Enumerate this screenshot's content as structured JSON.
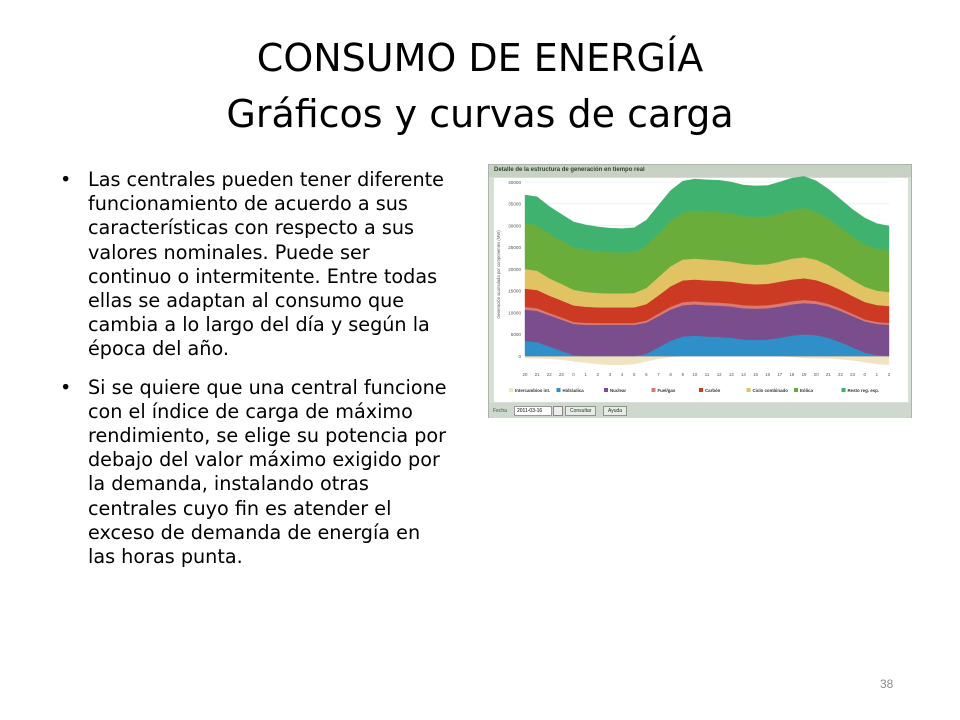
{
  "title": {
    "line1": "CONSUMO DE ENERGÍA",
    "line2": "Gráficos y curvas de carga"
  },
  "bullets": [
    "Las centrales pueden tener diferente funcionamiento de acuerdo a sus características con respecto a sus valores nominales. Puede ser continuo o intermitente. Entre todas ellas se adaptan al consumo que cambia a lo largo del día y según la época del año.",
    "Si se quiere que una central funcione con el índice de carga de máximo rendimiento, se elige su potencia por debajo del valor máximo exigido por la demanda, instalando otras centrales cuyo fin es atender el exceso de demanda de energía en las horas punta."
  ],
  "bullet_symbol": "•",
  "page_number": "38",
  "chart_panel": {
    "title": "Detalle de la estructura de generación en tiempo real",
    "fecha_label": "Fecha",
    "date_value": "2011-03-16",
    "consultar_label": "Consultar",
    "ayuda_label": "Ayuda"
  },
  "chart_data": {
    "type": "area",
    "title": "Detalle de la estructura de generación en tiempo real",
    "ylabel": "Generación acumulada por componentes (MW)",
    "ylim": [
      -2500,
      40000
    ],
    "yticks": [
      0,
      5000,
      10000,
      15000,
      20000,
      25000,
      30000,
      35000,
      40000
    ],
    "x": [
      "20",
      "21",
      "22",
      "23",
      "0",
      "1",
      "2",
      "3",
      "4",
      "5",
      "6",
      "7",
      "8",
      "9",
      "10",
      "11",
      "12",
      "13",
      "14",
      "15",
      "16",
      "17",
      "18",
      "19",
      "20",
      "21",
      "22",
      "23",
      "0",
      "1",
      "2"
    ],
    "series": [
      {
        "name": "Intercambios int.",
        "color": "#f3e3c2",
        "values": [
          -500,
          -500,
          -600,
          -800,
          -1200,
          -1500,
          -1800,
          -2000,
          -2000,
          -1800,
          -1200,
          -600,
          -200,
          0,
          0,
          0,
          0,
          0,
          0,
          0,
          0,
          0,
          -200,
          -400,
          -500,
          -500,
          -700,
          -1000,
          -1400,
          -1800,
          -2000
        ]
      },
      {
        "name": "Hidráulica",
        "color": "#2f8fc9",
        "values": [
          3500,
          3200,
          2200,
          1200,
          200,
          0,
          0,
          0,
          0,
          0,
          500,
          2000,
          3500,
          4500,
          4700,
          4500,
          4400,
          4200,
          3800,
          3700,
          3800,
          4200,
          4700,
          5000,
          4800,
          4200,
          3200,
          2000,
          800,
          200,
          0
        ]
      },
      {
        "name": "Nuclear",
        "color": "#7a4d8c",
        "values": [
          7200,
          7200,
          7200,
          7200,
          7200,
          7200,
          7200,
          7200,
          7200,
          7200,
          7200,
          7200,
          7200,
          7200,
          7200,
          7200,
          7200,
          7200,
          7200,
          7200,
          7200,
          7200,
          7200,
          7200,
          7200,
          7200,
          7200,
          7200,
          7200,
          7200,
          7200
        ]
      },
      {
        "name": "Fuel/gas",
        "color": "#d97a73",
        "values": [
          600,
          600,
          500,
          500,
          450,
          450,
          400,
          400,
          400,
          400,
          450,
          550,
          650,
          700,
          700,
          700,
          700,
          700,
          700,
          700,
          700,
          700,
          700,
          700,
          650,
          600,
          550,
          500,
          450,
          450,
          400
        ]
      },
      {
        "name": "Carbón",
        "color": "#cc3a23",
        "values": [
          4200,
          4200,
          4000,
          3900,
          3800,
          3700,
          3600,
          3600,
          3600,
          3600,
          3800,
          4200,
          4700,
          5000,
          5000,
          5000,
          5000,
          5000,
          5000,
          4900,
          4900,
          5000,
          5000,
          5000,
          4800,
          4500,
          4300,
          4100,
          4000,
          3900,
          3900
        ]
      },
      {
        "name": "Ciclo combinado",
        "color": "#e2c363",
        "values": [
          4500,
          4400,
          4000,
          3800,
          3600,
          3400,
          3300,
          3200,
          3200,
          3300,
          3700,
          4200,
          4600,
          4800,
          4800,
          4800,
          4700,
          4600,
          4500,
          4500,
          4500,
          4600,
          4800,
          4800,
          4700,
          4400,
          4000,
          3700,
          3500,
          3300,
          3200
        ]
      },
      {
        "name": "Eólica",
        "color": "#6aad3b",
        "values": [
          10500,
          10500,
          10200,
          10000,
          9800,
          9700,
          9600,
          9500,
          9400,
          9400,
          9600,
          10000,
          10400,
          10800,
          11000,
          11000,
          11100,
          11100,
          11000,
          11000,
          11000,
          11100,
          11200,
          11300,
          11000,
          10700,
          10300,
          10000,
          9800,
          9600,
          9500
        ]
      },
      {
        "name": "Resto reg. esp.",
        "color": "#3fb26f",
        "values": [
          6500,
          6500,
          6300,
          6000,
          5800,
          5700,
          5600,
          5500,
          5500,
          5600,
          6000,
          6500,
          7000,
          7200,
          7300,
          7300,
          7300,
          7200,
          7100,
          7100,
          7100,
          7200,
          7300,
          7300,
          7100,
          6800,
          6500,
          6200,
          6000,
          5800,
          5700
        ]
      }
    ],
    "legend_position": "bottom",
    "grid": true
  }
}
